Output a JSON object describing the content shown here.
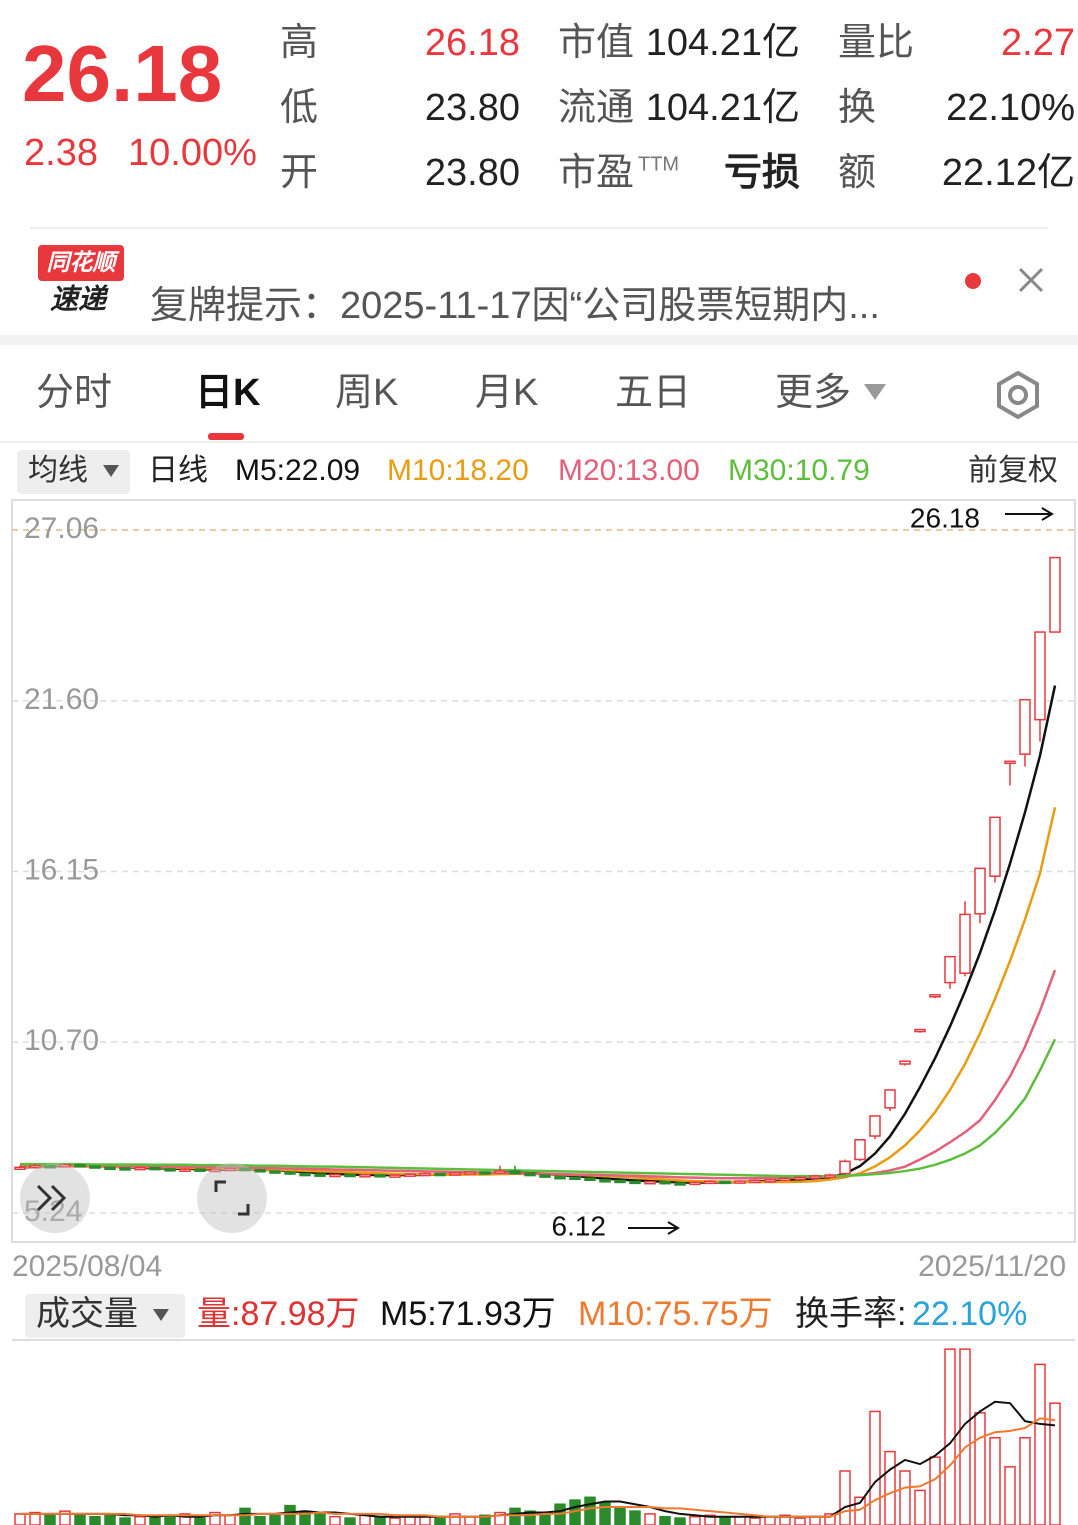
{
  "quote": {
    "price": "26.18",
    "change": "2.38",
    "change_pct": "10.00%",
    "stats": [
      {
        "label": "高",
        "value": "26.18",
        "color": "#e8383d"
      },
      {
        "label": "低",
        "value": "23.80"
      },
      {
        "label": "开",
        "value": "23.80"
      },
      {
        "label": "市值",
        "value": "104.21亿"
      },
      {
        "label": "流通",
        "value": "104.21亿"
      },
      {
        "label": "市盈",
        "sup": "TTM",
        "value": "亏损"
      },
      {
        "label": "量比",
        "value": "2.27",
        "color": "#e8383d"
      },
      {
        "label": "换",
        "value": "22.10%"
      },
      {
        "label": "额",
        "value": "22.12亿"
      }
    ]
  },
  "notice": {
    "logo_top": "同花顺",
    "logo_bottom": "速递",
    "text": "复牌提示：2025-11-17因“公司股票短期内..."
  },
  "tabs": [
    "分时",
    "日K",
    "周K",
    "月K",
    "五日",
    "更多"
  ],
  "chart_data": [
    {
      "type": "candlestick",
      "indicator_menu": "均线",
      "period": "日线",
      "adjust": "前复权",
      "x_labels": [
        "2025/08/04",
        "2025/11/20"
      ],
      "ylim": [
        5.24,
        27.06
      ],
      "yticks": [
        5.24,
        {
          "value": 10.7,
          "label": "10.70"
        },
        16.15,
        {
          "value": 21.6,
          "label": "21.60"
        },
        27.06
      ],
      "max_label": 26.18,
      "min_label": 6.12,
      "up_color": "#e8383d",
      "down_color": "#2b8a2b",
      "candles": [
        [
          6.68,
          6.75,
          6.65,
          6.7
        ],
        [
          6.7,
          6.8,
          6.68,
          6.75
        ],
        [
          6.75,
          6.78,
          6.7,
          6.72
        ],
        [
          6.72,
          6.82,
          6.7,
          6.78
        ],
        [
          6.78,
          6.8,
          6.72,
          6.74
        ],
        [
          6.74,
          6.76,
          6.68,
          6.7
        ],
        [
          6.7,
          6.72,
          6.65,
          6.68
        ],
        [
          6.68,
          6.7,
          6.63,
          6.66
        ],
        [
          6.66,
          6.72,
          6.64,
          6.69
        ],
        [
          6.69,
          6.7,
          6.62,
          6.65
        ],
        [
          6.65,
          6.67,
          6.6,
          6.62
        ],
        [
          6.62,
          6.68,
          6.6,
          6.64
        ],
        [
          6.64,
          6.65,
          6.57,
          6.6
        ],
        [
          6.6,
          6.66,
          6.58,
          6.63
        ],
        [
          6.63,
          6.69,
          6.61,
          6.66
        ],
        [
          6.66,
          6.67,
          6.6,
          6.62
        ],
        [
          6.62,
          6.63,
          6.55,
          6.58
        ],
        [
          6.58,
          6.6,
          6.52,
          6.55
        ],
        [
          6.55,
          6.56,
          6.45,
          6.5
        ],
        [
          6.5,
          6.52,
          6.44,
          6.48
        ],
        [
          6.48,
          6.5,
          6.42,
          6.45
        ],
        [
          6.45,
          6.5,
          6.43,
          6.47
        ],
        [
          6.47,
          6.48,
          6.4,
          6.44
        ],
        [
          6.44,
          6.49,
          6.42,
          6.46
        ],
        [
          6.46,
          6.47,
          6.38,
          6.42
        ],
        [
          6.42,
          6.48,
          6.4,
          6.45
        ],
        [
          6.45,
          6.5,
          6.43,
          6.48
        ],
        [
          6.48,
          6.53,
          6.46,
          6.5
        ],
        [
          6.5,
          6.52,
          6.44,
          6.47
        ],
        [
          6.47,
          6.55,
          6.45,
          6.52
        ],
        [
          6.52,
          6.58,
          6.5,
          6.55
        ],
        [
          6.55,
          6.56,
          6.5,
          6.53
        ],
        [
          6.53,
          6.75,
          6.52,
          6.58
        ],
        [
          6.58,
          6.75,
          6.48,
          6.5
        ],
        [
          6.5,
          6.52,
          6.42,
          6.45
        ],
        [
          6.45,
          6.46,
          6.37,
          6.4
        ],
        [
          6.4,
          6.42,
          6.35,
          6.38
        ],
        [
          6.38,
          6.4,
          6.32,
          6.35
        ],
        [
          6.35,
          6.36,
          6.27,
          6.3
        ],
        [
          6.3,
          6.33,
          6.25,
          6.28
        ],
        [
          6.28,
          6.29,
          6.21,
          6.25
        ],
        [
          6.25,
          6.26,
          6.18,
          6.22
        ],
        [
          6.22,
          6.27,
          6.2,
          6.24
        ],
        [
          6.24,
          6.25,
          6.16,
          6.2
        ],
        [
          6.2,
          6.22,
          6.12,
          6.18
        ],
        [
          6.18,
          6.25,
          6.16,
          6.22
        ],
        [
          6.22,
          6.28,
          6.2,
          6.25
        ],
        [
          6.25,
          6.26,
          6.19,
          6.23
        ],
        [
          6.23,
          6.29,
          6.21,
          6.26
        ],
        [
          6.26,
          6.31,
          6.24,
          6.28
        ],
        [
          6.28,
          6.33,
          6.26,
          6.3
        ],
        [
          6.3,
          6.38,
          6.28,
          6.35
        ],
        [
          6.35,
          6.4,
          6.32,
          6.38
        ],
        [
          6.38,
          6.45,
          6.36,
          6.42
        ],
        [
          6.42,
          6.5,
          6.4,
          6.45
        ],
        [
          6.5,
          6.95,
          6.48,
          6.89
        ],
        [
          6.95,
          7.58,
          6.9,
          7.58
        ],
        [
          7.7,
          8.34,
          7.6,
          8.34
        ],
        [
          8.6,
          9.17,
          8.5,
          9.17
        ],
        [
          10.0,
          10.09,
          9.95,
          10.09
        ],
        [
          11.1,
          11.1,
          11.0,
          11.1
        ],
        [
          12.21,
          12.21,
          12.1,
          12.21
        ],
        [
          12.6,
          13.43,
          12.4,
          13.43
        ],
        [
          12.9,
          15.2,
          12.8,
          14.78
        ],
        [
          14.8,
          16.25,
          14.5,
          16.25
        ],
        [
          16.0,
          17.88,
          15.8,
          17.88
        ],
        [
          19.67,
          19.67,
          18.9,
          19.67
        ],
        [
          19.9,
          21.64,
          19.5,
          21.64
        ],
        [
          21.0,
          23.8,
          20.3,
          23.8
        ],
        [
          23.8,
          26.18,
          23.8,
          26.18
        ]
      ],
      "series": [
        {
          "name": "M5:22.09",
          "color": "#111111",
          "values": [
            6.7,
            6.71,
            6.72,
            6.74,
            6.74,
            6.74,
            6.72,
            6.7,
            6.68,
            6.67,
            6.66,
            6.65,
            6.64,
            6.63,
            6.63,
            6.63,
            6.62,
            6.61,
            6.58,
            6.55,
            6.51,
            6.49,
            6.47,
            6.46,
            6.45,
            6.45,
            6.45,
            6.46,
            6.46,
            6.48,
            6.5,
            6.51,
            6.53,
            6.54,
            6.52,
            6.49,
            6.45,
            6.42,
            6.38,
            6.34,
            6.31,
            6.28,
            6.26,
            6.24,
            6.22,
            6.21,
            6.22,
            6.22,
            6.23,
            6.25,
            6.26,
            6.28,
            6.31,
            6.35,
            6.38,
            6.5,
            6.74,
            7.14,
            7.69,
            8.41,
            9.26,
            10.18,
            11.2,
            12.32,
            13.55,
            14.91,
            16.4,
            18.04,
            19.85,
            22.09
          ]
        },
        {
          "name": "M10:18.20",
          "color": "#e89c12",
          "values": [
            6.72,
            6.72,
            6.72,
            6.73,
            6.73,
            6.72,
            6.72,
            6.71,
            6.7,
            6.7,
            6.69,
            6.68,
            6.67,
            6.66,
            6.65,
            6.64,
            6.63,
            6.62,
            6.61,
            6.59,
            6.57,
            6.56,
            6.54,
            6.52,
            6.51,
            6.49,
            6.48,
            6.47,
            6.46,
            6.46,
            6.47,
            6.47,
            6.48,
            6.49,
            6.49,
            6.48,
            6.47,
            6.46,
            6.44,
            6.42,
            6.4,
            6.37,
            6.34,
            6.31,
            6.28,
            6.26,
            6.25,
            6.24,
            6.23,
            6.23,
            6.23,
            6.23,
            6.24,
            6.26,
            6.31,
            6.38,
            6.51,
            6.73,
            7.02,
            7.4,
            7.88,
            8.46,
            9.17,
            10.0,
            10.98,
            12.08,
            13.29,
            14.62,
            16.09,
            18.2
          ]
        },
        {
          "name": "M20:13.00",
          "color": "#e2607a",
          "values": [
            6.75,
            6.75,
            6.75,
            6.75,
            6.75,
            6.74,
            6.74,
            6.74,
            6.73,
            6.73,
            6.72,
            6.72,
            6.71,
            6.71,
            6.7,
            6.69,
            6.68,
            6.67,
            6.66,
            6.65,
            6.64,
            6.63,
            6.62,
            6.61,
            6.6,
            6.59,
            6.58,
            6.57,
            6.56,
            6.55,
            6.54,
            6.53,
            6.52,
            6.51,
            6.5,
            6.49,
            6.48,
            6.47,
            6.46,
            6.45,
            6.44,
            6.43,
            6.41,
            6.4,
            6.38,
            6.37,
            6.36,
            6.35,
            6.35,
            6.35,
            6.36,
            6.37,
            6.38,
            6.39,
            6.4,
            6.42,
            6.46,
            6.52,
            6.6,
            6.72,
            6.95,
            7.2,
            7.5,
            7.82,
            8.2,
            8.85,
            9.6,
            10.55,
            11.7,
            13.0
          ]
        },
        {
          "name": "M30:10.79",
          "color": "#5cbf3c",
          "values": [
            6.8,
            6.8,
            6.8,
            6.8,
            6.8,
            6.79,
            6.79,
            6.79,
            6.79,
            6.78,
            6.78,
            6.78,
            6.77,
            6.77,
            6.76,
            6.76,
            6.75,
            6.75,
            6.74,
            6.73,
            6.72,
            6.72,
            6.71,
            6.7,
            6.69,
            6.68,
            6.67,
            6.66,
            6.65,
            6.64,
            6.63,
            6.62,
            6.61,
            6.6,
            6.59,
            6.58,
            6.57,
            6.56,
            6.55,
            6.54,
            6.53,
            6.52,
            6.51,
            6.5,
            6.49,
            6.48,
            6.47,
            6.46,
            6.45,
            6.44,
            6.43,
            6.42,
            6.42,
            6.42,
            6.42,
            6.43,
            6.45,
            6.48,
            6.52,
            6.58,
            6.66,
            6.78,
            6.94,
            7.14,
            7.4,
            7.8,
            8.3,
            8.9,
            9.8,
            10.79
          ]
        }
      ]
    },
    {
      "type": "bar",
      "menu": "成交量",
      "volume_label": "量:87.98万",
      "turnover_label": "换手率:",
      "turnover_value": "22.10%",
      "ylim": [
        0,
        130
      ],
      "values": [
        8,
        9,
        7,
        10,
        8,
        6,
        7,
        5,
        6,
        7,
        6,
        8,
        5,
        9,
        7,
        12,
        6,
        7,
        14,
        9,
        8,
        6,
        5,
        7,
        6,
        5,
        7,
        6,
        5,
        8,
        6,
        7,
        9,
        12,
        10,
        8,
        15,
        18,
        20,
        16,
        12,
        10,
        8,
        6,
        5,
        6,
        7,
        5,
        6,
        5,
        6,
        7,
        5,
        6,
        8,
        39,
        20,
        82,
        53,
        39,
        25,
        49,
        127,
        127,
        81,
        63,
        42,
        63,
        116,
        87.98
      ],
      "series": [
        {
          "name": "M5:71.93万",
          "color": "#111111",
          "values": [
            8,
            8,
            8,
            8,
            8,
            8,
            8,
            7,
            7,
            6,
            7,
            6,
            6,
            7,
            7,
            8,
            8,
            8,
            9,
            10,
            9,
            9,
            8,
            7,
            6,
            6,
            6,
            6,
            6,
            6,
            6,
            6,
            7,
            8,
            9,
            9,
            10,
            13,
            15,
            17,
            17,
            15,
            13,
            10,
            8,
            7,
            6,
            6,
            6,
            6,
            6,
            6,
            6,
            6,
            6,
            13,
            16,
            31,
            40,
            47,
            44,
            50,
            59,
            73,
            82,
            89,
            88,
            75,
            73,
            71.93
          ]
        },
        {
          "name": "M10:75.75万",
          "color": "#ee7a30",
          "values": [
            8,
            8,
            8,
            8,
            8,
            8,
            8,
            8,
            7,
            7,
            7,
            7,
            7,
            7,
            7,
            7,
            8,
            8,
            8,
            8,
            9,
            8,
            8,
            8,
            8,
            7,
            7,
            7,
            6,
            6,
            6,
            6,
            7,
            7,
            7,
            8,
            8,
            10,
            12,
            13,
            13,
            13,
            13,
            12,
            12,
            11,
            10,
            9,
            8,
            7,
            6,
            6,
            6,
            6,
            6,
            10,
            11,
            18,
            23,
            27,
            28,
            33,
            43,
            56,
            63,
            67,
            68,
            70,
            77,
            75.75
          ]
        }
      ]
    }
  ]
}
